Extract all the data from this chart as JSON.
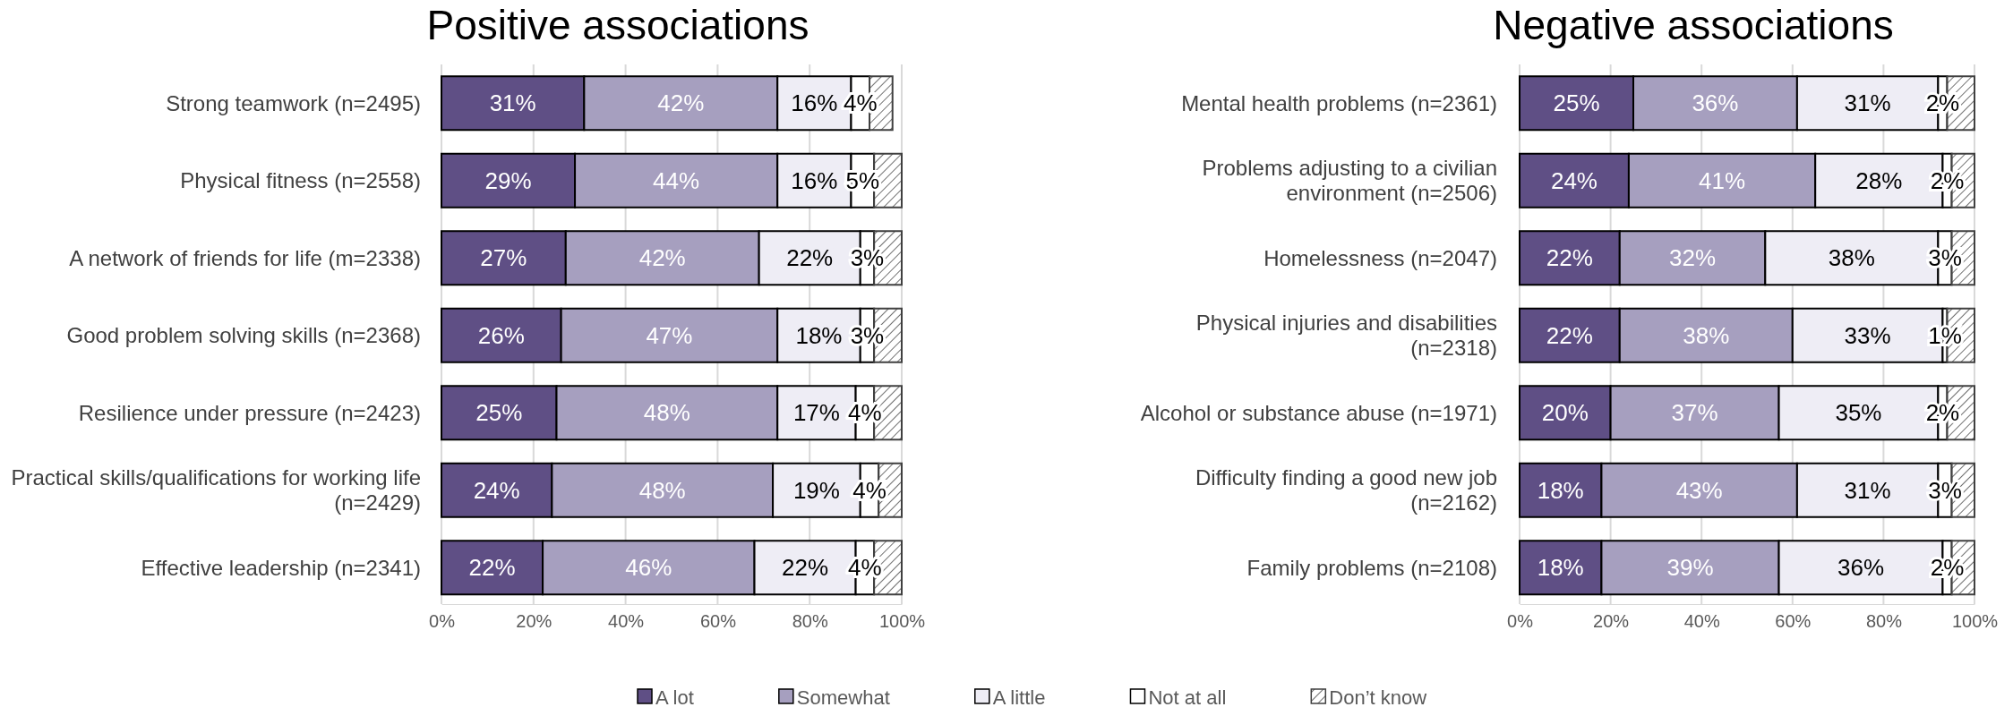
{
  "chart_data": [
    {
      "type": "bar",
      "orientation": "horizontal",
      "stacked": true,
      "title": "Positive associations",
      "categories": [
        "Strong teamwork (n=2495)",
        "Physical fitness (n=2558)",
        "A network of friends for life (m=2338)",
        "Good problem solving skills (n=2368)",
        "Resilience under pressure (n=2423)",
        "Practical skills/qualifications for working life (n=2429)",
        "Effective leadership (n=2341)"
      ],
      "series": [
        {
          "name": "A lot",
          "color": "#5f4f85",
          "values": [
            31,
            29,
            27,
            26,
            25,
            24,
            22
          ],
          "value_labels": [
            "31%",
            "29%",
            "27%",
            "26%",
            "25%",
            "24%",
            "22%"
          ]
        },
        {
          "name": "Somewhat",
          "color": "#a69fbf",
          "values": [
            42,
            44,
            42,
            47,
            48,
            48,
            46
          ],
          "value_labels": [
            "42%",
            "44%",
            "42%",
            "47%",
            "48%",
            "48%",
            "46%"
          ]
        },
        {
          "name": "A little",
          "color": "#eeedf5",
          "values": [
            16,
            16,
            22,
            18,
            17,
            19,
            22
          ],
          "value_labels": [
            "16%",
            "16%",
            "22%",
            "18%",
            "17%",
            "19%",
            "22%"
          ]
        },
        {
          "name": "Not at all",
          "color": "#ffffff",
          "values": [
            4,
            5,
            3,
            3,
            4,
            4,
            4
          ],
          "value_labels": [
            "4%",
            "5%",
            "3%",
            "3%",
            "4%",
            "4%",
            "4%"
          ]
        },
        {
          "name": "Don’t know",
          "color": "#404040",
          "values": [
            5,
            6,
            6,
            6,
            6,
            5,
            6
          ],
          "value_labels": [
            null,
            null,
            null,
            null,
            null,
            null,
            null
          ]
        }
      ],
      "xlim": [
        0,
        100
      ],
      "xticks": [
        {
          "value": 0,
          "label": "0%"
        },
        {
          "value": 20,
          "label": "20%"
        },
        {
          "value": 40,
          "label": "40%"
        },
        {
          "value": 60,
          "label": "60%"
        },
        {
          "value": 80,
          "label": "80%"
        },
        {
          "value": 100,
          "label": "100%"
        }
      ],
      "grid": "x",
      "legend": "bottom"
    },
    {
      "type": "bar",
      "orientation": "horizontal",
      "stacked": true,
      "title": "Negative associations",
      "categories": [
        "Mental health problems (n=2361)",
        "Problems adjusting to a civilian environment (n=2506)",
        "Homelessness (n=2047)",
        "Physical injuries and disabilities (n=2318)",
        "Alcohol or substance abuse (n=1971)",
        "Difficulty finding a good new job (n=2162)",
        "Family problems (n=2108)"
      ],
      "series": [
        {
          "name": "A lot",
          "color": "#5f4f85",
          "values": [
            25,
            24,
            22,
            22,
            20,
            18,
            18
          ],
          "value_labels": [
            "25%",
            "24%",
            "22%",
            "22%",
            "20%",
            "18%",
            "18%"
          ]
        },
        {
          "name": "Somewhat",
          "color": "#a69fbf",
          "values": [
            36,
            41,
            32,
            38,
            37,
            43,
            39
          ],
          "value_labels": [
            "36%",
            "41%",
            "32%",
            "38%",
            "37%",
            "43%",
            "39%"
          ]
        },
        {
          "name": "A little",
          "color": "#eeedf5",
          "values": [
            31,
            28,
            38,
            33,
            35,
            31,
            36
          ],
          "value_labels": [
            "31%",
            "28%",
            "38%",
            "33%",
            "35%",
            "31%",
            "36%"
          ]
        },
        {
          "name": "Not at all",
          "color": "#ffffff",
          "values": [
            2,
            2,
            3,
            1,
            2,
            3,
            2
          ],
          "value_labels": [
            "2%",
            "2%",
            "3%",
            "1%",
            "2%",
            "3%",
            "2%"
          ]
        },
        {
          "name": "Don’t know",
          "color": "#404040",
          "values": [
            6,
            5,
            5,
            6,
            6,
            5,
            5
          ],
          "value_labels": [
            null,
            null,
            null,
            null,
            null,
            null,
            null
          ]
        }
      ],
      "xlim": [
        0,
        100
      ],
      "xticks": [
        {
          "value": 0,
          "label": "0%"
        },
        {
          "value": 20,
          "label": "20%"
        },
        {
          "value": 40,
          "label": "40%"
        },
        {
          "value": 60,
          "label": "60%"
        },
        {
          "value": 80,
          "label": "80%"
        },
        {
          "value": 100,
          "label": "100%"
        }
      ],
      "grid": "x",
      "legend": "bottom"
    }
  ]
}
